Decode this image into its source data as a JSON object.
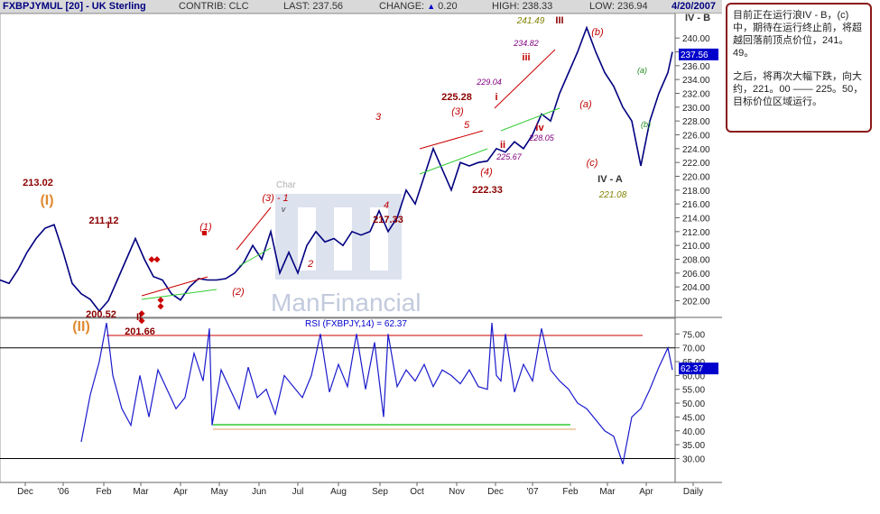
{
  "header": {
    "symbol": "FXBPJYMUL [20] - UK Sterling",
    "contrib": "CONTRIB: CLC",
    "last": "LAST: 237.56",
    "change_label": "CHANGE:",
    "change_value": "0.20",
    "high": "HIGH: 238.33",
    "low": "LOW: 236.94",
    "date": "4/20/2007"
  },
  "watermark": {
    "text": "ManFinancial",
    "faint_text": "Char"
  },
  "note": {
    "paragraph1": "目前正在运行浪IV - B，(c)中，期待在运行终止前，将超越回落前顶点价位，241。49。",
    "paragraph2": "之后，将再次大幅下跌，向大约，221。00 —— 225。50，目标价位区域运行。"
  },
  "colors": {
    "price_line": "#000080",
    "rsi_line": "#1a1acc",
    "wave_red": "#c00000",
    "trend_green": "#33cc33",
    "major_orange": "#e08a30",
    "badge_blue": "#0000cc",
    "olive": "#808000"
  },
  "chart_data": [
    {
      "type": "line",
      "title": "FXBPJYMUL [20] - UK Sterling",
      "x_ticks": [
        "Dec",
        "'06",
        "Feb",
        "Mar",
        "Apr",
        "May",
        "Jun",
        "Jul",
        "Aug",
        "Sep",
        "Oct",
        "Nov",
        "Dec",
        "'07",
        "Feb",
        "Mar",
        "Apr",
        "Daily"
      ],
      "y_ticks": [
        202,
        204,
        206,
        208,
        210,
        212,
        214,
        216,
        218,
        220,
        222,
        224,
        226,
        228,
        230,
        232,
        234,
        236,
        238,
        240
      ],
      "ylim": [
        200.5,
        242.5
      ],
      "last_badge": "237.56",
      "series": [
        {
          "x": [
            0,
            10,
            20,
            30,
            40,
            50,
            60,
            70,
            80,
            90,
            100,
            110,
            120,
            130,
            140,
            150,
            160,
            170,
            180,
            190,
            200,
            210,
            220,
            230,
            240,
            250,
            260,
            270,
            280,
            290,
            300,
            310,
            320,
            330,
            340,
            350,
            360,
            370,
            380,
            390,
            400,
            410,
            420,
            430,
            440,
            450,
            460,
            470,
            480,
            490,
            500,
            510,
            520,
            530,
            540,
            550,
            560,
            570,
            580,
            590,
            600,
            610,
            620,
            630,
            640,
            650,
            660,
            670,
            680,
            690,
            700,
            710,
            720,
            730,
            740,
            745
          ],
          "values": [
            205,
            204.5,
            206.5,
            209,
            211,
            212.5,
            213,
            209,
            204.5,
            203,
            202.2,
            200.5,
            202,
            205,
            208,
            211,
            208,
            205.5,
            205,
            203,
            202.1,
            204,
            205.2,
            205,
            205,
            205.2,
            206,
            207.5,
            210,
            208,
            212,
            206,
            209,
            206,
            210,
            212,
            210.5,
            211,
            210,
            212,
            211.5,
            212,
            215,
            212,
            214,
            218,
            216,
            220,
            224,
            221,
            218,
            222,
            221.5,
            222,
            222.2,
            224,
            223.5,
            225,
            224,
            226,
            229,
            228,
            232,
            235,
            238,
            241.5,
            238,
            235,
            233,
            230,
            228,
            221.5,
            228,
            232,
            235,
            238
          ]
        }
      ],
      "wave_labels": [
        "(I)",
        "213.02",
        "211.12",
        "I",
        "200.52",
        "(II)",
        "II",
        "201.66",
        "(1)",
        "(2)",
        "(3) - 1",
        "2",
        "3",
        "4",
        "217.33",
        "(3)",
        "5",
        "225.28",
        "(4)",
        "222.33",
        "i",
        "ii",
        "iii",
        "iv",
        "v",
        "229.04",
        "234.82",
        "241.49",
        "III",
        "225.67",
        "228.05",
        "(a)",
        "(b)",
        "(c)",
        "IV - A",
        "221.08",
        "IV - B"
      ]
    },
    {
      "type": "line",
      "title": "RSI (FXBPJY,14) = 62.37",
      "y_ticks": [
        30,
        35,
        40,
        45,
        50,
        55,
        60,
        65,
        70,
        75
      ],
      "ylim": [
        22,
        80
      ],
      "reference_lines": [
        70,
        30
      ],
      "last_badge": "62.37",
      "series": [
        {
          "x": [
            90,
            100,
            110,
            118,
            125,
            135,
            145,
            155,
            165,
            175,
            185,
            195,
            205,
            215,
            225,
            232,
            235,
            245,
            255,
            265,
            275,
            285,
            295,
            305,
            315,
            325,
            335,
            345,
            355,
            365,
            375,
            385,
            395,
            405,
            415,
            425,
            430,
            440,
            450,
            460,
            470,
            480,
            490,
            500,
            510,
            520,
            530,
            540,
            545,
            550,
            555,
            560,
            570,
            580,
            590,
            600,
            610,
            620,
            630,
            640,
            650,
            660,
            670,
            680,
            690,
            700,
            710,
            720,
            730,
            740,
            745
          ],
          "values": [
            36,
            53,
            65,
            79,
            60,
            48,
            42,
            60,
            45,
            62,
            55,
            48,
            52,
            68,
            58,
            77,
            42,
            62,
            55,
            48,
            63,
            52,
            55,
            46,
            60,
            56,
            52,
            60,
            75,
            54,
            64,
            56,
            75,
            55,
            72,
            45,
            75,
            56,
            62,
            58,
            64,
            56,
            62,
            60,
            57,
            62,
            56,
            55,
            79,
            60,
            58,
            75,
            54,
            64,
            58,
            77,
            62,
            58,
            55,
            50,
            48,
            44,
            40,
            38,
            28,
            45,
            48,
            55,
            63,
            70,
            62
          ]
        }
      ]
    }
  ]
}
